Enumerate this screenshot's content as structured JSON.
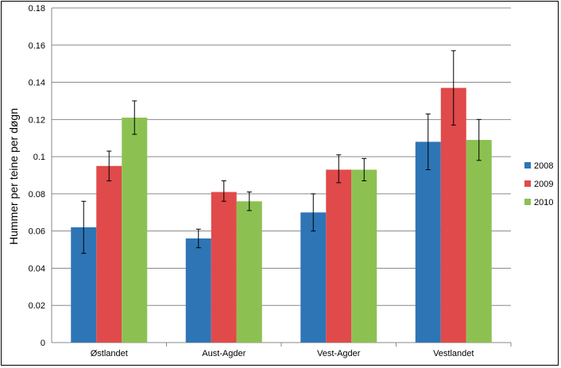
{
  "chart_data": {
    "type": "bar",
    "title": "",
    "xlabel": "",
    "ylabel": "Hummer per teine per døgn",
    "ylim": [
      0,
      0.18
    ],
    "yticks": [
      "0",
      "0.02",
      "0.04",
      "0.06",
      "0.08",
      "0.1",
      "0.12",
      "0.14",
      "0.16",
      "0.18"
    ],
    "grid": true,
    "legend_position": "right",
    "categories": [
      "Østlandet",
      "Aust-Agder",
      "Vest-Agder",
      "Vestlandet"
    ],
    "series": [
      {
        "name": "2008",
        "color": "#2e75b6",
        "values": [
          0.062,
          0.056,
          0.07,
          0.108
        ],
        "err_low": [
          0.048,
          0.051,
          0.06,
          0.093
        ],
        "err_high": [
          0.076,
          0.061,
          0.08,
          0.123
        ]
      },
      {
        "name": "2009",
        "color": "#e04a4a",
        "values": [
          0.095,
          0.081,
          0.093,
          0.137
        ],
        "err_low": [
          0.087,
          0.076,
          0.086,
          0.117
        ],
        "err_high": [
          0.103,
          0.087,
          0.101,
          0.157
        ]
      },
      {
        "name": "2010",
        "color": "#8cc152",
        "values": [
          0.121,
          0.076,
          0.093,
          0.109
        ],
        "err_low": [
          0.112,
          0.071,
          0.087,
          0.098
        ],
        "err_high": [
          0.13,
          0.081,
          0.099,
          0.12
        ]
      }
    ]
  }
}
